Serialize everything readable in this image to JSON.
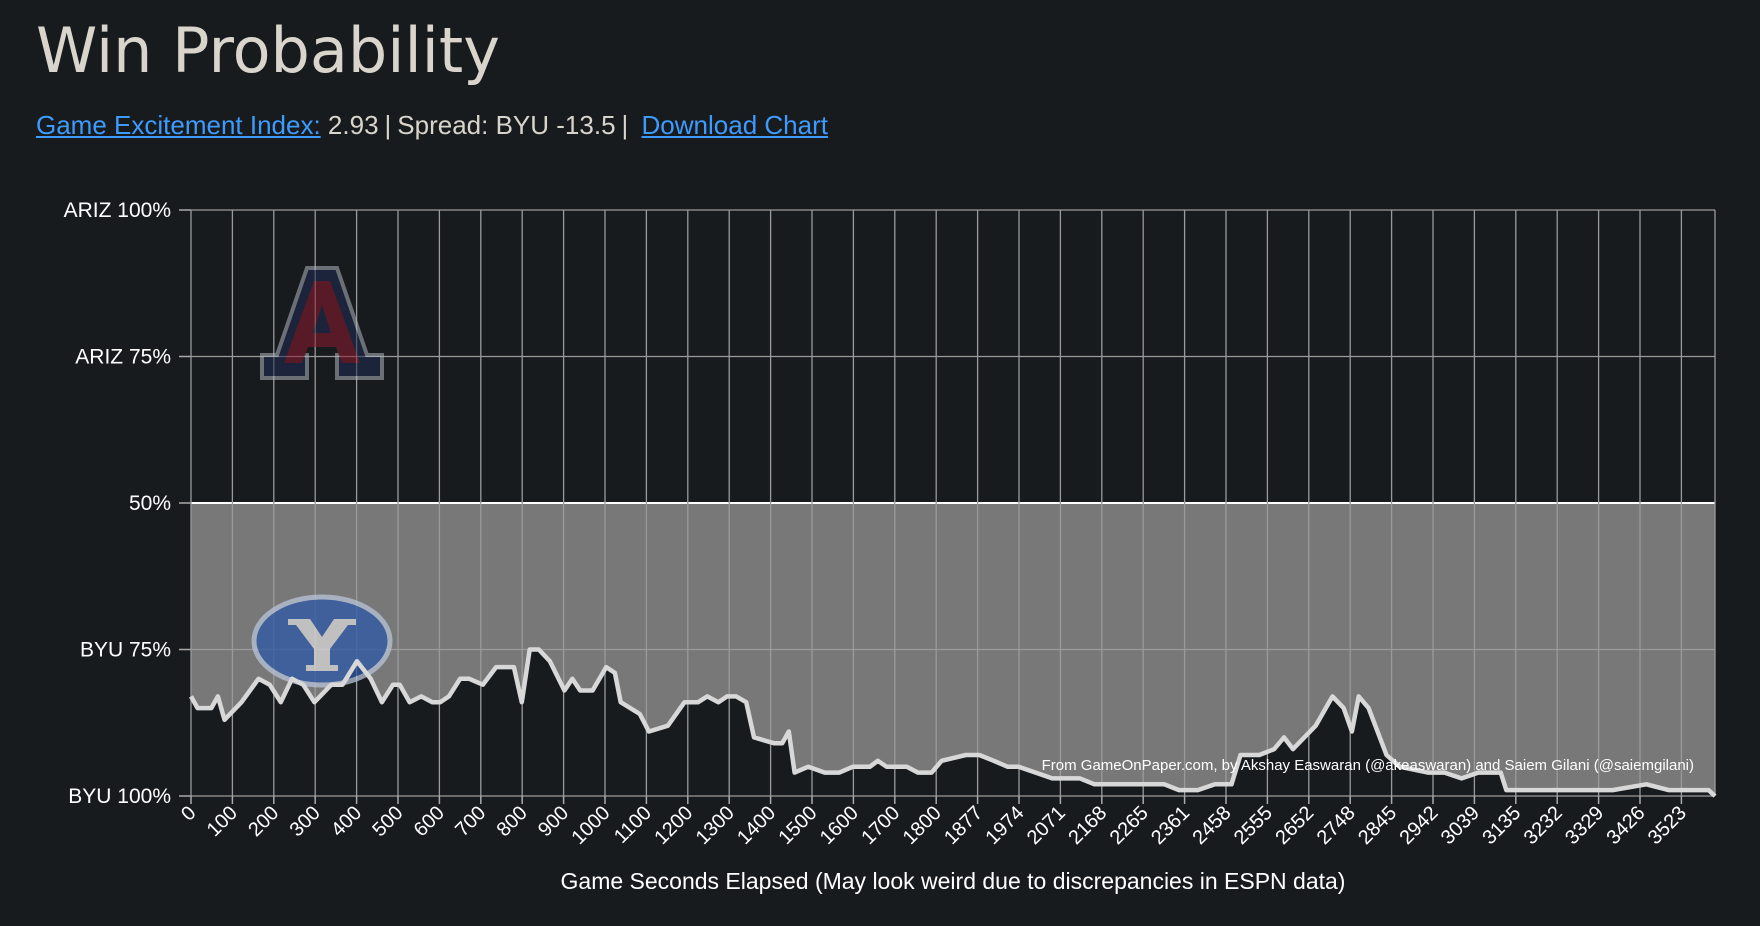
{
  "header": {
    "title": "Win Probability",
    "gei_label": "Game Excitement Index:",
    "gei_value": 2.93,
    "separator": "|",
    "spread": "Spread: BYU -13.5",
    "download": "Download Chart"
  },
  "chart_data": {
    "type": "line",
    "color": "#d8d8d8",
    "x_label": "Game Seconds Elapsed (May look weird due to discrepancies in ESPN data)",
    "annotation": "From GameOnPaper.com, by Akshay Easwaran (@akeaswaran) and Saiem Gilani (@saiemgilani)",
    "ylim": [
      0,
      100
    ],
    "yticks": [
      {
        "value": 100,
        "label": "ARIZ 100%"
      },
      {
        "value": 75,
        "label": "ARIZ 75%"
      },
      {
        "value": 50,
        "label": "50%"
      },
      {
        "value": 25,
        "label": "BYU 75%"
      },
      {
        "value": 0,
        "label": "BYU 100%"
      }
    ],
    "xlim": [
      0,
      3600
    ],
    "xticks": [
      0,
      100,
      200,
      300,
      400,
      500,
      600,
      700,
      800,
      900,
      1000,
      1100,
      1200,
      1300,
      1400,
      1500,
      1600,
      1700,
      1800,
      1877,
      1974,
      2071,
      2168,
      2265,
      2361,
      2458,
      2555,
      2652,
      2748,
      2845,
      2942,
      3039,
      3135,
      3232,
      3329,
      3426,
      3523
    ],
    "grid": true,
    "x": [
      0,
      16,
      49,
      65,
      81,
      122,
      163,
      190,
      217,
      244,
      271,
      298,
      339,
      366,
      401,
      434,
      461,
      488,
      504,
      528,
      556,
      583,
      602,
      623,
      650,
      672,
      705,
      737,
      780,
      799,
      818,
      840,
      867,
      902,
      921,
      940,
      970,
      1003,
      1024,
      1038,
      1084,
      1106,
      1152,
      1192,
      1225,
      1247,
      1274,
      1295,
      1317,
      1341,
      1360,
      1409,
      1428,
      1444,
      1458,
      1491,
      1531,
      1566,
      1599,
      1640,
      1659,
      1680,
      1729,
      1756,
      1789,
      1810,
      1855,
      1881,
      1915,
      1947,
      1973,
      2052,
      2117,
      2151,
      2196,
      2235,
      2314,
      2348,
      2392,
      2432,
      2471,
      2492,
      2536,
      2571,
      2594,
      2615,
      2668,
      2707,
      2733,
      2752,
      2768,
      2791,
      2833,
      2864,
      2930,
      2969,
      3009,
      3048,
      3074,
      3100,
      3113,
      3179,
      3257,
      3362,
      3441,
      3493,
      3546,
      3585,
      3600
    ],
    "values": [
      17,
      15,
      15,
      17,
      13,
      16,
      20,
      19,
      16,
      20,
      19,
      16,
      19,
      19,
      23,
      20,
      16,
      19,
      19,
      16,
      17,
      16,
      16,
      17,
      20,
      20,
      19,
      22,
      22,
      16,
      25,
      25,
      23,
      18,
      20,
      18,
      18,
      22,
      21,
      16,
      14,
      11,
      12,
      16,
      16,
      17,
      16,
      17,
      17,
      16,
      10,
      9,
      9,
      11,
      4,
      5,
      4,
      4,
      5,
      5,
      6,
      5,
      5,
      4,
      4,
      6,
      7,
      7,
      6,
      5,
      5,
      3,
      3,
      2,
      2,
      2,
      2,
      1,
      1,
      2,
      2,
      7,
      7,
      8,
      10,
      8,
      12,
      17,
      15,
      11,
      17,
      15,
      7,
      5,
      4,
      4,
      3,
      4,
      4,
      4,
      1,
      1,
      1,
      1,
      2,
      1,
      1,
      1,
      0
    ]
  }
}
